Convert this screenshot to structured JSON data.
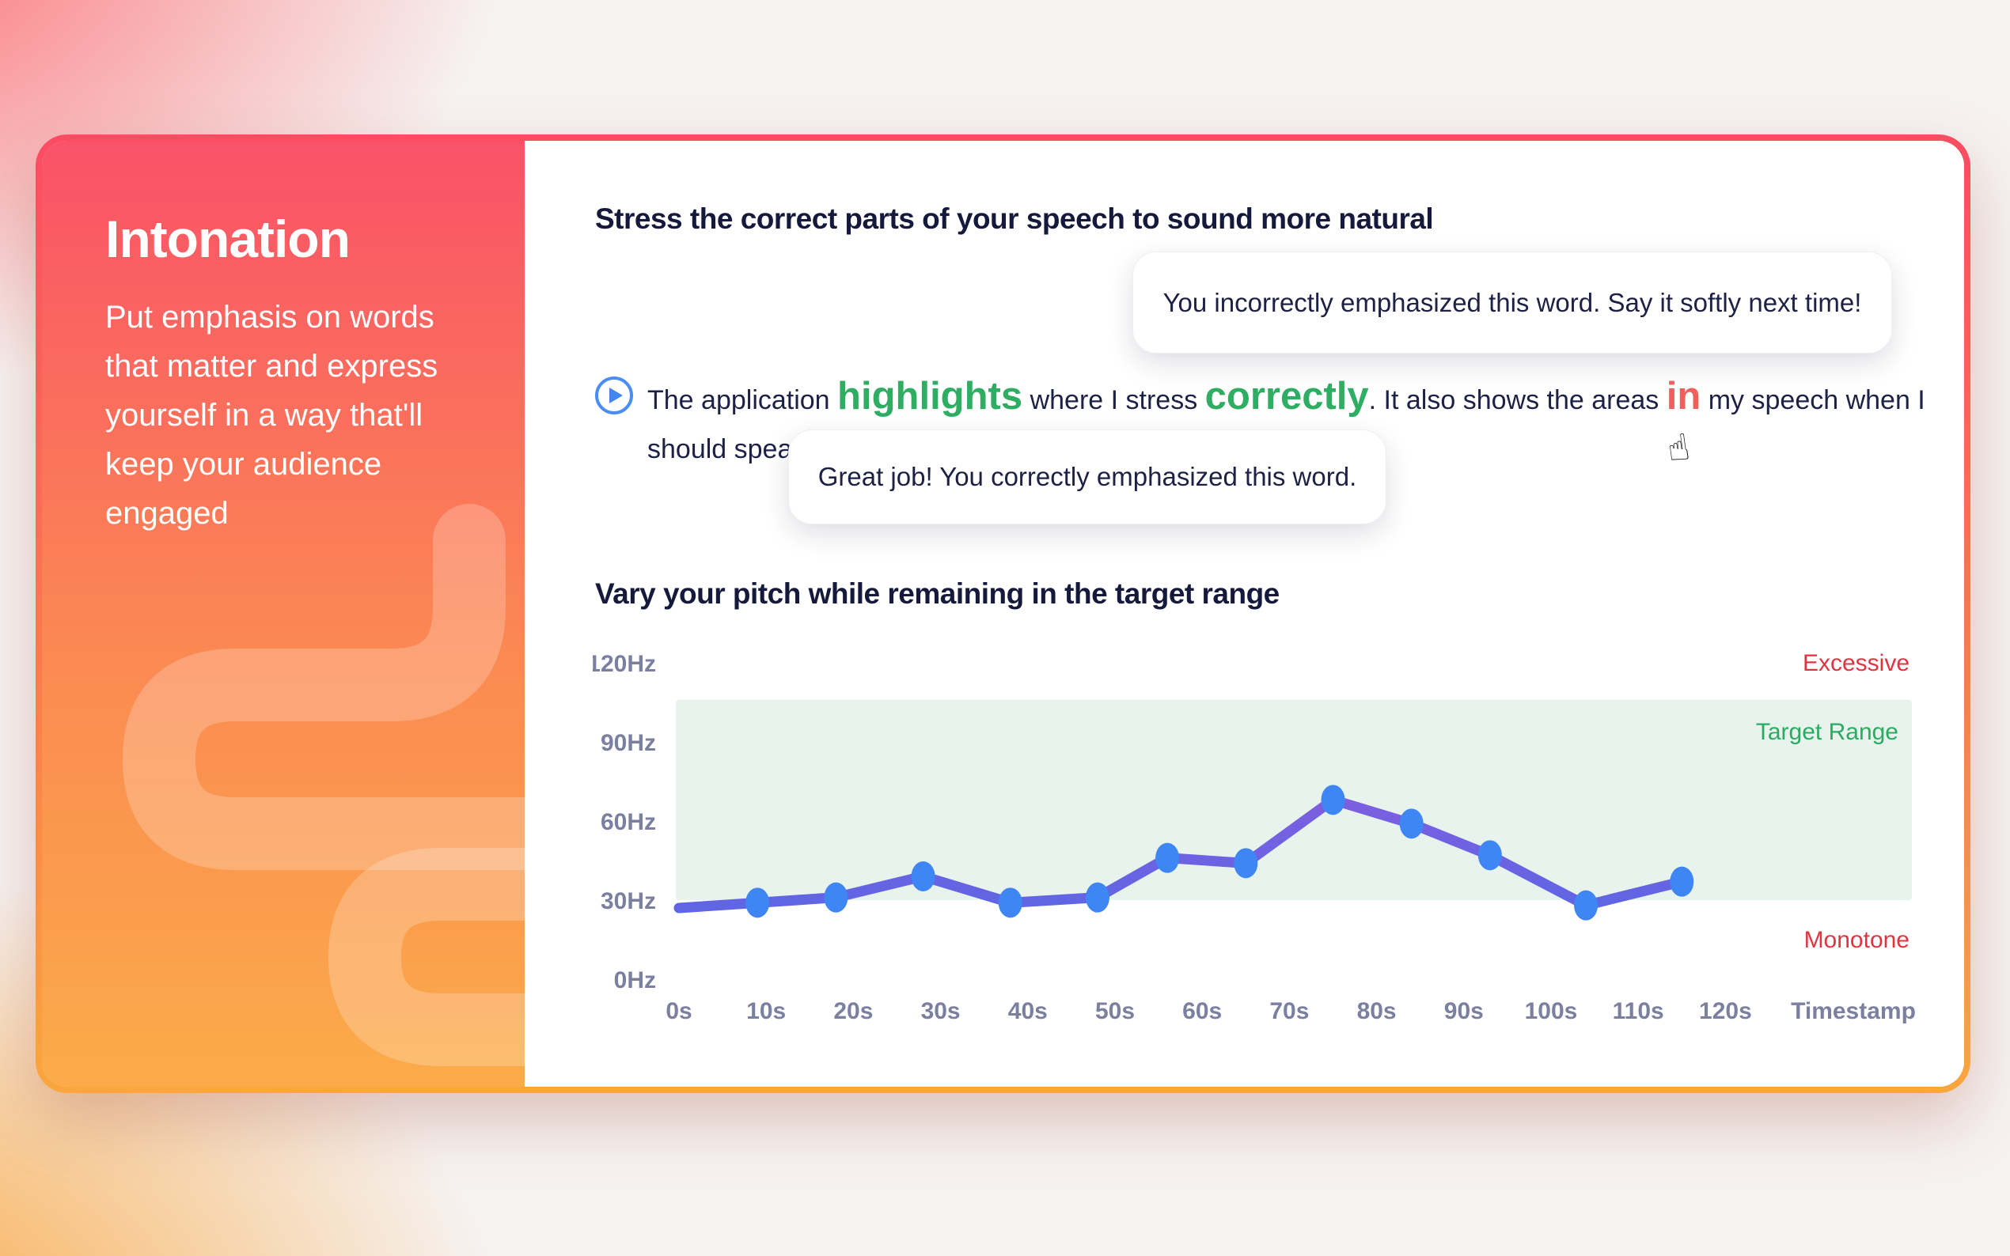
{
  "sidebar": {
    "title": "Intonation",
    "description": "Put emphasis on words that matter and express yourself in a way that'll keep your audience engaged"
  },
  "main": {
    "section1_title": "Stress the correct parts of your speech to sound more natural",
    "tooltip_incorrect": "You incorrectly emphasized this word. Say it softly next time!",
    "tooltip_correct": "Great job! You correctly emphasized this word.",
    "section2_title": "Vary your pitch while remaining in the target range",
    "transcript": {
      "segments": [
        {
          "text": "The application ",
          "style": "normal"
        },
        {
          "text": "highlights",
          "style": "emphasis-correct",
          "cursor": true
        },
        {
          "text": " where I stress ",
          "style": "normal"
        },
        {
          "text": "correctly",
          "style": "emphasis-correct"
        },
        {
          "text": ". It also shows the areas ",
          "style": "normal"
        },
        {
          "text": "in",
          "style": "emphasis-incorrect",
          "cursor": true
        },
        {
          "text": " my speech when I should speak more softly.",
          "style": "normal"
        }
      ]
    }
  },
  "icons": {
    "play_icon": "play-triangle-in-circle",
    "pointer_cursor_glyph": "☝"
  },
  "chart_data": {
    "type": "line",
    "title": "Vary your pitch while remaining in the target range",
    "xlabel": "Timestamp",
    "ylabel": "Hz",
    "ylim": [
      0,
      120
    ],
    "grid": false,
    "legend": false,
    "y_ticks": [
      {
        "label": "120Hz",
        "hz": 120
      },
      {
        "label": "90Hz",
        "hz": 90
      },
      {
        "label": "60Hz",
        "hz": 60
      },
      {
        "label": "30Hz",
        "hz": 30
      },
      {
        "label": "0Hz",
        "hz": 0
      }
    ],
    "x_ticks": [
      "0s",
      "10s",
      "20s",
      "30s",
      "40s",
      "50s",
      "60s",
      "70s",
      "80s",
      "90s",
      "100s",
      "110s",
      "120s"
    ],
    "x_axis_title": "Timestamp",
    "target_band": {
      "from_hz": 30,
      "to_hz": 106,
      "color": "#e7f3ec"
    },
    "zones": [
      {
        "id": "excessive",
        "label": "Excessive",
        "color": "#e03540"
      },
      {
        "id": "target_range",
        "label": "Target Range",
        "color": "#2bab62"
      },
      {
        "id": "monotone",
        "label": "Monotone",
        "color": "#e03540"
      }
    ],
    "points": [
      {
        "t": 0,
        "hz": 27,
        "dot": false
      },
      {
        "t": 9,
        "hz": 29,
        "dot": true
      },
      {
        "t": 18,
        "hz": 31,
        "dot": true
      },
      {
        "t": 28,
        "hz": 39,
        "dot": true
      },
      {
        "t": 38,
        "hz": 29,
        "dot": true
      },
      {
        "t": 48,
        "hz": 31,
        "dot": true
      },
      {
        "t": 56,
        "hz": 46,
        "dot": true
      },
      {
        "t": 65,
        "hz": 44,
        "dot": true
      },
      {
        "t": 75,
        "hz": 68,
        "dot": true
      },
      {
        "t": 84,
        "hz": 59,
        "dot": true
      },
      {
        "t": 93,
        "hz": 47,
        "dot": true
      },
      {
        "t": 104,
        "hz": 28,
        "dot": true
      },
      {
        "t": 115,
        "hz": 37,
        "dot": true
      }
    ],
    "colors": {
      "line_top": "#cf5ce0",
      "line_mid": "#7a5fe0",
      "line_bottom": "#5d66e4",
      "dot": "#3e86f3",
      "tick_text": "#7b7fa0"
    }
  }
}
